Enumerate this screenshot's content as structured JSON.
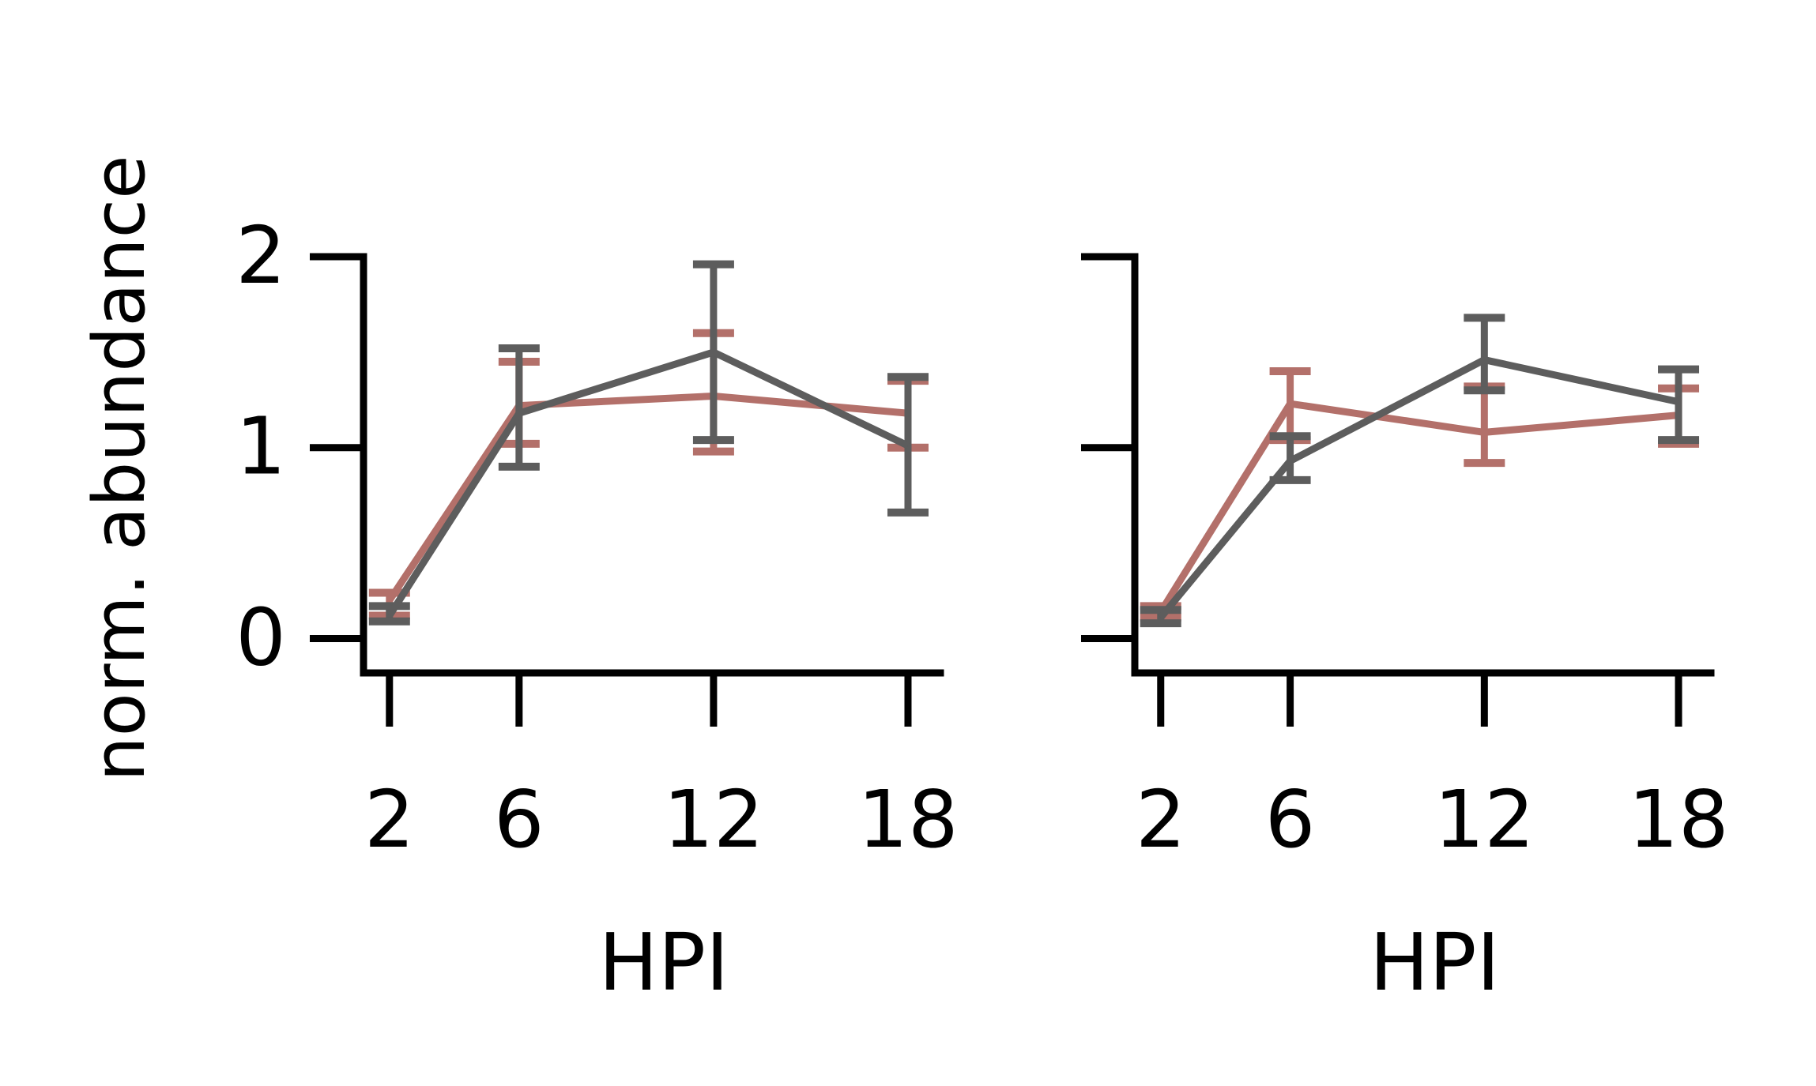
{
  "colors": {
    "axis": "#000000",
    "series_rose": "#b3706a",
    "series_gray": "#5d5d5d"
  },
  "ylabel": "norm. abundance",
  "chart_data": [
    {
      "type": "line",
      "panel": "left",
      "xlabel": "HPI",
      "ylabel": "norm. abundance",
      "x": [
        2,
        6,
        12,
        18
      ],
      "x_tick_labels": [
        "2",
        "6",
        "12",
        "18"
      ],
      "y_ticks": [
        0,
        1,
        2
      ],
      "y_tick_labels": [
        "0",
        "1",
        "2"
      ],
      "xlim": [
        1.2,
        19
      ],
      "ylim": [
        -0.18,
        2
      ],
      "grid": false,
      "legend": "none",
      "series": [
        {
          "color": "#b3706a",
          "values": [
            0.2,
            1.22,
            1.27,
            1.18
          ],
          "err_low": [
            0.12,
            1.02,
            0.98,
            1.0
          ],
          "err_high": [
            0.24,
            1.45,
            1.6,
            1.35
          ]
        },
        {
          "color": "#5d5d5d",
          "values": [
            0.12,
            1.18,
            1.5,
            1.01
          ],
          "err_low": [
            0.09,
            0.9,
            1.04,
            0.66
          ],
          "err_high": [
            0.17,
            1.52,
            1.96,
            1.37
          ]
        }
      ]
    },
    {
      "type": "line",
      "panel": "right",
      "xlabel": "HPI",
      "x": [
        2,
        6,
        12,
        18
      ],
      "x_tick_labels": [
        "2",
        "6",
        "12",
        "18"
      ],
      "y_ticks": [
        0,
        1,
        2
      ],
      "y_tick_labels": [
        "",
        "",
        ""
      ],
      "xlim": [
        1.2,
        19
      ],
      "ylim": [
        -0.18,
        2
      ],
      "grid": false,
      "legend": "none",
      "series": [
        {
          "color": "#b3706a",
          "values": [
            0.14,
            1.23,
            1.08,
            1.17
          ],
          "err_low": [
            0.11,
            1.04,
            0.92,
            1.02
          ],
          "err_high": [
            0.17,
            1.4,
            1.32,
            1.31
          ]
        },
        {
          "color": "#5d5d5d",
          "values": [
            0.11,
            0.93,
            1.46,
            1.24
          ],
          "err_low": [
            0.08,
            0.83,
            1.3,
            1.04
          ],
          "err_high": [
            0.15,
            1.06,
            1.68,
            1.41
          ]
        }
      ]
    }
  ]
}
